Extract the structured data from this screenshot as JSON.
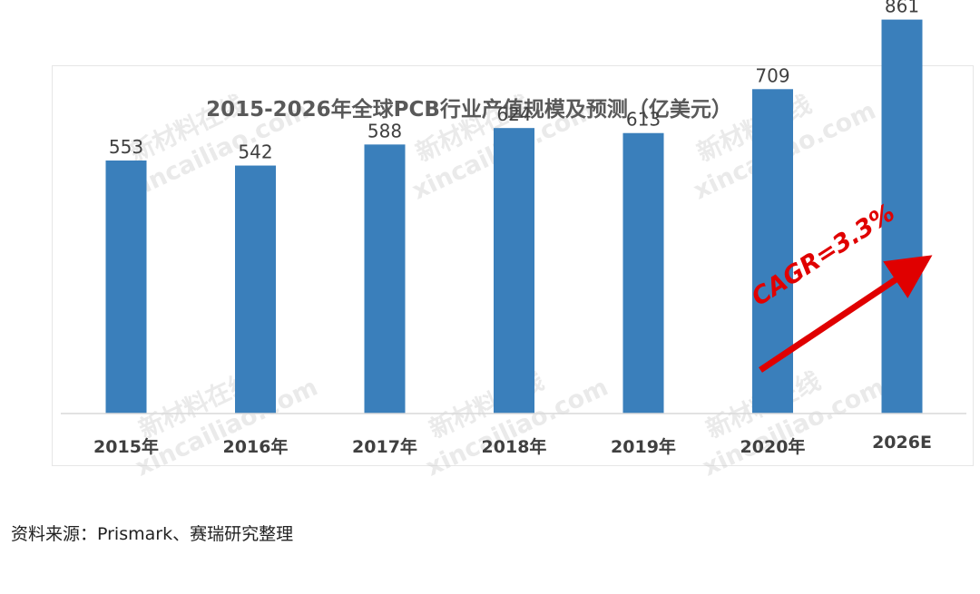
{
  "chart_data": {
    "type": "bar",
    "title": "2015-2026年全球PCB行业产值规模及预测（亿美元）",
    "categories": [
      "2015年",
      "2016年",
      "2017年",
      "2018年",
      "2019年",
      "2020年",
      "2026E"
    ],
    "values": [
      553,
      542,
      588,
      624,
      613,
      709,
      861
    ],
    "data_labels": [
      "553",
      "542",
      "588",
      "624",
      "613",
      "709",
      "861"
    ],
    "ylim": [
      0,
      920
    ],
    "grid": false,
    "legend": "none",
    "annotation": "CAGR=3.3%",
    "colors": {
      "bar": "#3a7fbb",
      "annotation": "#e00000",
      "axis": "#d9d9d9",
      "title": "#595959"
    }
  },
  "source": "资料来源：Prismark、赛瑞研究整理",
  "watermark": {
    "cn": "新材料在线",
    "en": "xincailiao.com"
  }
}
